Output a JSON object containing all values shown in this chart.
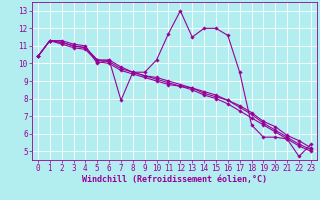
{
  "xlabel": "Windchill (Refroidissement éolien,°C)",
  "background_color": "#b2eef0",
  "grid_color": "#ffffff",
  "line_color": "#990099",
  "xlim": [
    -0.5,
    23.5
  ],
  "ylim": [
    4.5,
    13.5
  ],
  "xticks": [
    0,
    1,
    2,
    3,
    4,
    5,
    6,
    7,
    8,
    9,
    10,
    11,
    12,
    13,
    14,
    15,
    16,
    17,
    18,
    19,
    20,
    21,
    22,
    23
  ],
  "yticks": [
    5,
    6,
    7,
    8,
    9,
    10,
    11,
    12,
    13
  ],
  "series": [
    [
      10.4,
      11.3,
      11.3,
      11.1,
      11.0,
      10.0,
      10.2,
      7.9,
      9.5,
      9.5,
      10.2,
      11.7,
      13.0,
      11.5,
      12.0,
      12.0,
      11.6,
      9.5,
      6.5,
      5.8,
      5.8,
      5.7,
      4.7,
      5.4
    ],
    [
      10.4,
      11.3,
      11.2,
      11.0,
      10.9,
      10.2,
      10.2,
      9.8,
      9.5,
      9.3,
      9.2,
      9.0,
      8.8,
      8.6,
      8.4,
      8.2,
      7.9,
      7.6,
      7.2,
      6.7,
      6.4,
      5.9,
      5.6,
      5.2
    ],
    [
      10.4,
      11.3,
      11.2,
      11.0,
      10.9,
      10.2,
      10.1,
      9.7,
      9.5,
      9.3,
      9.1,
      8.9,
      8.7,
      8.6,
      8.3,
      8.1,
      7.9,
      7.5,
      7.1,
      6.6,
      6.2,
      5.8,
      5.4,
      5.1
    ],
    [
      10.4,
      11.3,
      11.1,
      10.9,
      10.8,
      10.1,
      10.0,
      9.6,
      9.4,
      9.2,
      9.0,
      8.8,
      8.7,
      8.5,
      8.2,
      8.0,
      7.7,
      7.3,
      6.9,
      6.5,
      6.1,
      5.7,
      5.3,
      5.0
    ]
  ],
  "tick_fontsize": 5.5,
  "xlabel_fontsize": 6.0,
  "marker": "D",
  "marker_size": 1.8,
  "linewidth": 0.8
}
